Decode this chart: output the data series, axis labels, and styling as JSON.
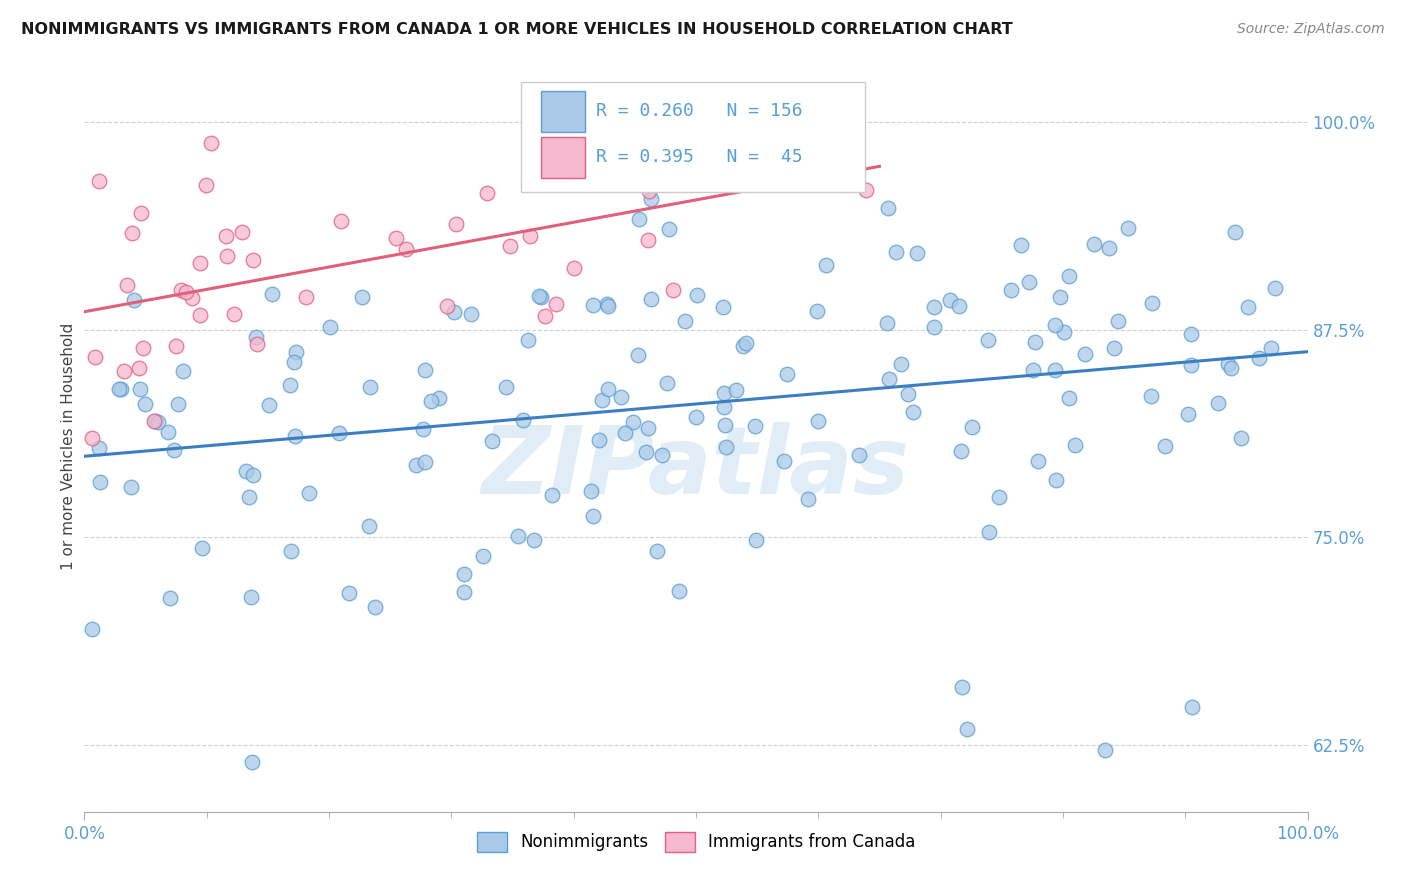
{
  "title": "NONIMMIGRANTS VS IMMIGRANTS FROM CANADA 1 OR MORE VEHICLES IN HOUSEHOLD CORRELATION CHART",
  "source": "Source: ZipAtlas.com",
  "ylabel": "1 or more Vehicles in Household",
  "ytick_labels": [
    "62.5%",
    "75.0%",
    "87.5%",
    "100.0%"
  ],
  "ytick_values": [
    0.625,
    0.75,
    0.875,
    1.0
  ],
  "xmin": 0.0,
  "xmax": 1.0,
  "ymin": 0.585,
  "ymax": 1.025,
  "blue_fill": "#aac9e8",
  "blue_edge": "#5a9fd4",
  "pink_fill": "#f5b8ce",
  "pink_edge": "#e06080",
  "blue_line_color": "#3a7fc1",
  "pink_line_color": "#e0607a",
  "legend_blue_fill": "#aac9e8",
  "legend_blue_edge": "#5a9fd4",
  "legend_pink_fill": "#f5b8ce",
  "legend_pink_edge": "#e06080",
  "R_blue": 0.26,
  "N_blue": 156,
  "R_pink": 0.395,
  "N_pink": 45,
  "watermark_text": "ZIPatlas",
  "bg_color": "#ffffff",
  "grid_color": "#d0d0d0",
  "tick_color": "#5a9fd4",
  "label_color": "#5a9fd4"
}
